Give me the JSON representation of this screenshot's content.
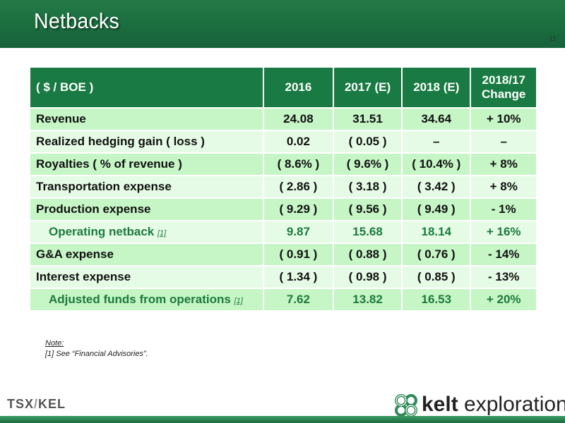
{
  "header": {
    "title": "Netbacks",
    "page_number": "11"
  },
  "table": {
    "columns": [
      "( $ / BOE )",
      "2016",
      "2017 (E)",
      "2018 (E)"
    ],
    "change_header": [
      "2018/17",
      "Change"
    ],
    "rows": [
      {
        "label": "Revenue",
        "footnote": "",
        "values": [
          "24.08",
          "31.51",
          "34.64",
          "+ 10%"
        ]
      },
      {
        "label": "Realized hedging gain ( loss )",
        "footnote": "",
        "values": [
          "0.02",
          "( 0.05 )",
          "–",
          "–"
        ]
      },
      {
        "label": "Royalties ( % of revenue )",
        "footnote": "",
        "values": [
          "( 8.6% )",
          "( 9.6% )",
          "( 10.4% )",
          "+ 8%"
        ]
      },
      {
        "label": "Transportation expense",
        "footnote": "",
        "values": [
          "( 2.86 )",
          "( 3.18 )",
          "( 3.42 )",
          "+ 8%"
        ]
      },
      {
        "label": "Production expense",
        "footnote": "",
        "values": [
          "( 9.29 )",
          "( 9.56 )",
          "( 9.49 )",
          "- 1%"
        ]
      },
      {
        "label": "Operating netback",
        "footnote": "[1]",
        "values": [
          "9.87",
          "15.68",
          "18.14",
          "+ 16%"
        ]
      },
      {
        "label": "G&A expense",
        "footnote": "",
        "values": [
          "( 0.91 )",
          "( 0.88 )",
          "( 0.76 )",
          "- 14%"
        ]
      },
      {
        "label": "Interest expense",
        "footnote": "",
        "values": [
          "( 1.34 )",
          "( 0.98 )",
          "( 0.85 )",
          "- 13%"
        ]
      },
      {
        "label": "Adjusted funds from operations",
        "footnote": "[1]",
        "values": [
          "7.62",
          "13.82",
          "16.53",
          "+ 20%"
        ]
      }
    ]
  },
  "notes": {
    "heading": "Note:",
    "line1": "[1] See “Financial Advisories”."
  },
  "footer": {
    "tsx_left": "TSX",
    "tsx_right": "KEL",
    "logo_bold": "kelt",
    "logo_rest": " exploration",
    "accent_color": "#197a43"
  }
}
